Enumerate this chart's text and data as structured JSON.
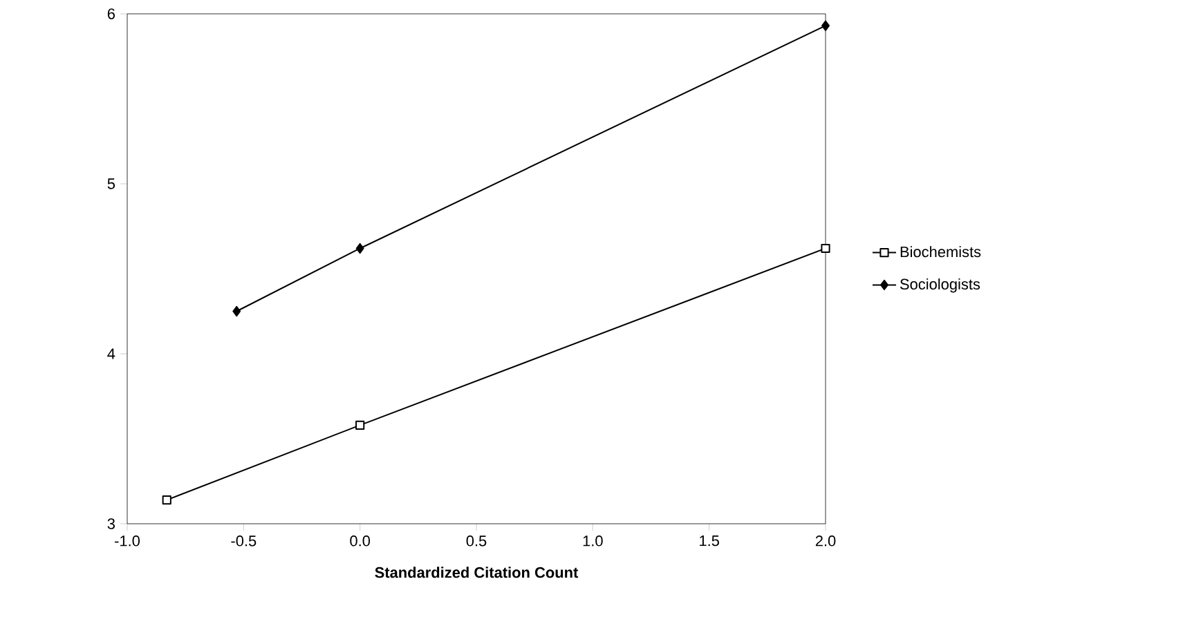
{
  "chart_data": {
    "type": "line",
    "xlabel": "Standardized Citation Count",
    "xlim": [
      -1.0,
      2.0
    ],
    "xticks": [
      {
        "value": -1.0,
        "label": "-1.0"
      },
      {
        "value": -0.5,
        "label": "-0.5"
      },
      {
        "value": 0.0,
        "label": "0.0"
      },
      {
        "value": 0.5,
        "label": "0.5"
      },
      {
        "value": 1.0,
        "label": "1.0"
      },
      {
        "value": 1.5,
        "label": "1.5"
      },
      {
        "value": 2.0,
        "label": "2.0"
      }
    ],
    "ylim": [
      3,
      6
    ],
    "yticks": [
      3,
      4,
      5,
      6
    ],
    "grid": false,
    "legend": "right",
    "series": [
      {
        "name": "Biochemists",
        "color": "#000000",
        "marker": "square",
        "x": [
          -0.83,
          0.0,
          2.0
        ],
        "values": [
          3.14,
          3.58,
          4.62
        ]
      },
      {
        "name": "Sociologists",
        "color": "#000000",
        "marker": "diamond",
        "x": [
          -0.53,
          0.0,
          2.0
        ],
        "values": [
          4.25,
          4.62,
          5.93
        ]
      }
    ]
  }
}
